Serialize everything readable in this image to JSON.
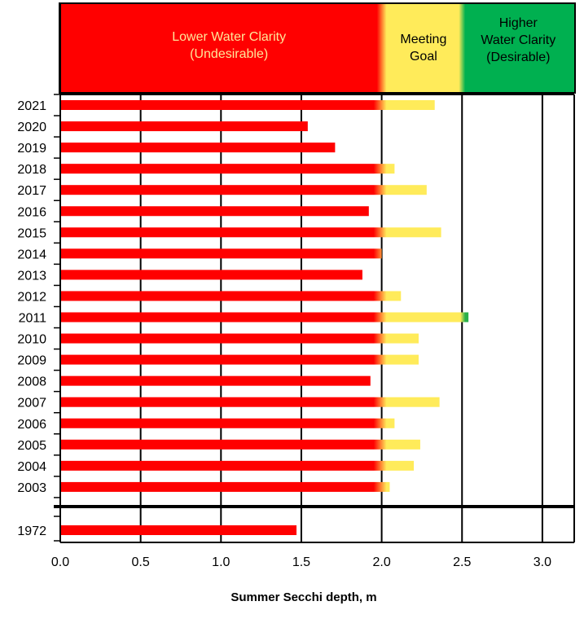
{
  "chart_data": {
    "type": "bar",
    "orientation": "horizontal",
    "xlabel": "Summer Secchi depth, m",
    "xlim": [
      0,
      3.2
    ],
    "xticks": [
      "0.0",
      "0.5",
      "1.0",
      "1.5",
      "2.0",
      "2.5",
      "3.0"
    ],
    "xtick_values": [
      0,
      0.5,
      1.0,
      1.5,
      2.0,
      2.5,
      3.0
    ],
    "zones": [
      {
        "lines": [
          "Lower Water Clarity",
          "(Undesirable)"
        ],
        "from": 0,
        "to": 2.0,
        "color": "#ff0000",
        "text_color": "#ffe699"
      },
      {
        "lines": [
          "Meeting",
          "Goal"
        ],
        "from": 2.0,
        "to": 2.5,
        "color": "#ffeb5a",
        "text_color": "#000000"
      },
      {
        "lines": [
          "Higher",
          "Water Clarity",
          "(Desirable)"
        ],
        "from": 2.5,
        "to": 3.2,
        "color": "#00b050",
        "text_color": "#000000"
      }
    ],
    "categories": [
      "2021",
      "2020",
      "2019",
      "2018",
      "2017",
      "2016",
      "2015",
      "2014",
      "2013",
      "2012",
      "2011",
      "2010",
      "2009",
      "2008",
      "2007",
      "2006",
      "2005",
      "2004",
      "2003",
      "1972"
    ],
    "values": [
      2.33,
      1.54,
      1.71,
      2.08,
      2.28,
      1.92,
      2.37,
      2.0,
      1.88,
      2.12,
      2.54,
      2.23,
      2.23,
      1.93,
      2.36,
      2.08,
      2.24,
      2.2,
      2.05,
      1.47
    ],
    "colors": {
      "red": "#ff0000",
      "yellow": "#ffeb5a",
      "green": "#2ab04a",
      "grid": "#000000"
    }
  }
}
